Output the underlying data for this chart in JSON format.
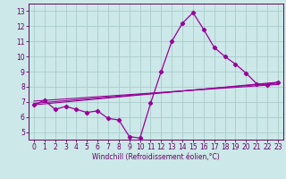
{
  "xlabel": "Windchill (Refroidissement éolien,°C)",
  "bg_color": "#cce8e8",
  "grid_color": "#aacccc",
  "line_color": "#990099",
  "spine_color": "#660066",
  "tick_color": "#660066",
  "label_color": "#660066",
  "x_ticks": [
    0,
    1,
    2,
    3,
    4,
    5,
    6,
    7,
    8,
    9,
    10,
    11,
    12,
    13,
    14,
    15,
    16,
    17,
    18,
    19,
    20,
    21,
    22,
    23
  ],
  "y_ticks": [
    5,
    6,
    7,
    8,
    9,
    10,
    11,
    12,
    13
  ],
  "ylim": [
    4.5,
    13.5
  ],
  "xlim": [
    -0.5,
    23.5
  ],
  "line1_x": [
    0,
    1,
    2,
    3,
    4,
    5,
    6,
    7,
    8,
    9,
    10,
    11,
    12,
    13,
    14,
    15,
    16,
    17,
    18,
    19,
    20,
    21,
    22,
    23
  ],
  "line1_y": [
    6.8,
    7.1,
    6.5,
    6.7,
    6.5,
    6.3,
    6.4,
    5.9,
    5.8,
    4.7,
    4.6,
    6.9,
    9.0,
    11.0,
    12.2,
    12.9,
    11.8,
    10.6,
    10.0,
    9.5,
    8.9,
    8.2,
    8.1,
    8.3
  ],
  "line2_x": [
    0,
    23
  ],
  "line2_y": [
    6.8,
    8.3
  ],
  "line3_x": [
    0,
    23
  ],
  "line3_y": [
    6.9,
    8.25
  ],
  "line4_x": [
    0,
    23
  ],
  "line4_y": [
    7.05,
    8.15
  ],
  "tick_fontsize": 5.5,
  "label_fontsize": 5.5
}
